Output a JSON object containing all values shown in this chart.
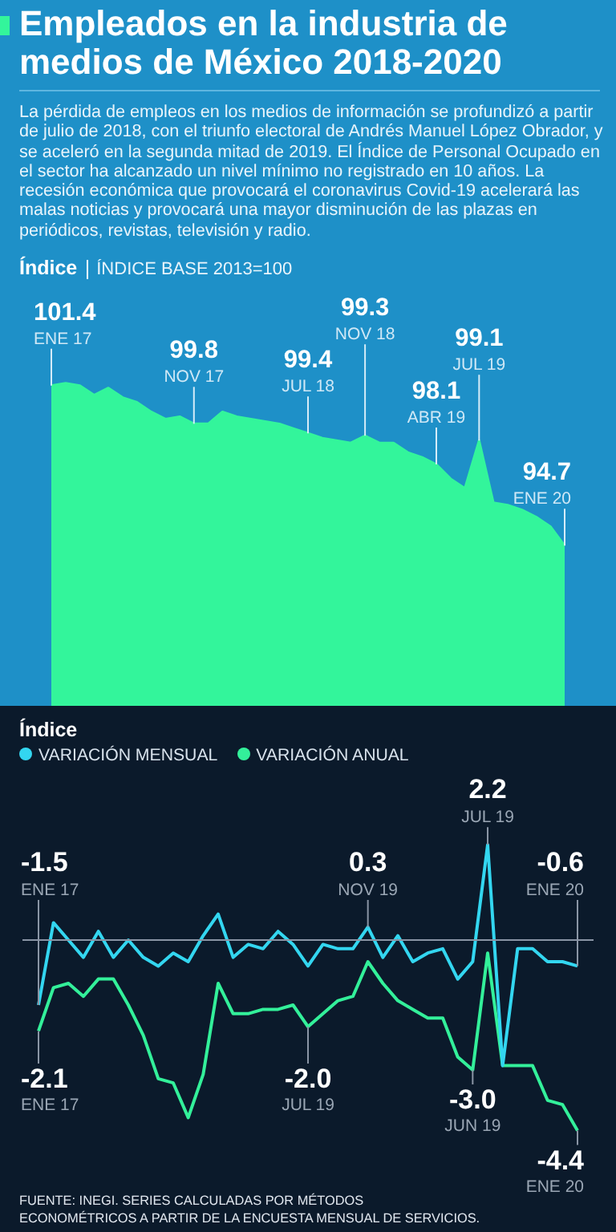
{
  "chart_data": [
    {
      "type": "area",
      "title": "Empleados en la industria de medios de México 2018-2020",
      "subtitle": "La pérdida de empleos en los medios de información se profundizó a partir de julio de 2018, con el triunfo electoral de Andrés Manuel López Obrador, y se aceleró en la segunda mitad de 2019. El Índice de Personal Ocupado en el sector ha alcanzado un nivel mínimo no registrado en 10 años. La recesión económica que provocará el coronavirus Covid-19 acelerará las malas noticias y provocará una mayor disminución de las plazas en periódicos, revistas, televisión y radio.",
      "ylabel": "Índice",
      "categories": [
        null,
        null,
        null,
        null,
        null,
        null,
        null,
        null,
        null,
        null,
        null,
        null,
        null,
        null,
        null,
        null,
        null,
        null,
        null,
        null,
        null,
        null,
        null,
        null,
        null,
        null,
        null,
        null,
        null,
        null,
        null,
        null,
        null,
        null,
        null,
        null,
        null
      ],
      "values": [
        101.4,
        101.5,
        101.4,
        101.0,
        101.3,
        100.9,
        100.7,
        100.3,
        100.0,
        100.1,
        99.8,
        99.8,
        100.3,
        100.1,
        100.0,
        99.9,
        99.8,
        99.6,
        99.4,
        99.2,
        99.1,
        99.0,
        99.3,
        99.0,
        99.0,
        98.6,
        98.4,
        98.1,
        97.5,
        97.1,
        99.1,
        96.5,
        96.4,
        96.2,
        95.9,
        95.5,
        94.7
      ],
      "value_labels": [
        "101.4",
        null,
        null,
        null,
        null,
        null,
        null,
        null,
        null,
        null,
        "99.8",
        null,
        null,
        null,
        null,
        null,
        null,
        null,
        "99.4",
        null,
        null,
        null,
        "99.3",
        null,
        null,
        null,
        null,
        "98.1",
        null,
        null,
        "99.1",
        null,
        null,
        null,
        null,
        null,
        "94.7"
      ],
      "color": "#33f59b",
      "tick_labels": false,
      "grid": false,
      "marker": "none",
      "annotations": [
        "ENE 17",
        "NOV 17",
        "JUL 18",
        "NOV 18",
        "ABR 19",
        "JUL 19",
        "ENE 20",
        "ÍNDICE BASE 2013=100"
      ]
    },
    {
      "type": "line",
      "ylabel": "Índice",
      "categories": [
        null,
        null,
        null,
        null,
        null,
        null,
        null,
        null,
        null,
        null,
        null,
        null,
        null,
        null,
        null,
        null,
        null,
        null,
        null,
        null,
        null,
        null,
        null,
        null,
        null,
        null,
        null,
        null,
        null,
        null,
        null,
        null,
        null,
        null,
        null,
        null,
        null
      ],
      "series": [
        {
          "name": "VARIACIÓN MENSUAL",
          "color": "#33d6f0",
          "values": [
            -1.5,
            0.4,
            0.0,
            -0.4,
            0.2,
            -0.4,
            0.0,
            -0.4,
            -0.6,
            -0.3,
            -0.5,
            0.1,
            0.6,
            -0.4,
            -0.1,
            -0.2,
            0.2,
            -0.1,
            -0.6,
            -0.1,
            -0.2,
            -0.2,
            0.3,
            -0.4,
            0.1,
            -0.5,
            -0.3,
            -0.2,
            -0.9,
            -0.5,
            2.2,
            -2.9,
            -0.2,
            -0.2,
            -0.5,
            -0.5,
            -0.6
          ],
          "value_labels": [
            "-1.5",
            null,
            null,
            null,
            null,
            null,
            null,
            null,
            null,
            null,
            null,
            null,
            null,
            null,
            null,
            null,
            null,
            null,
            null,
            null,
            null,
            null,
            "0.3",
            null,
            null,
            null,
            null,
            null,
            null,
            null,
            "2.2",
            null,
            null,
            null,
            null,
            null,
            "-0.6"
          ]
        },
        {
          "name": "VARIACIÓN ANUAL",
          "color": "#33f09a",
          "values": [
            -2.1,
            -1.1,
            -1.0,
            -1.3,
            -0.9,
            -0.9,
            -1.5,
            -2.2,
            -3.2,
            -3.3,
            -4.1,
            -3.1,
            -1.0,
            -1.7,
            -1.7,
            -1.6,
            -1.6,
            -1.5,
            -2.0,
            -1.7,
            -1.4,
            -1.3,
            -0.5,
            -1.0,
            -1.4,
            -1.6,
            -1.8,
            -1.8,
            -2.7,
            -3.0,
            -0.3,
            -2.9,
            -2.9,
            -2.9,
            -3.7,
            -3.8,
            -4.4
          ],
          "value_labels": [
            "-2.1",
            null,
            null,
            null,
            null,
            null,
            null,
            null,
            null,
            null,
            null,
            null,
            null,
            null,
            null,
            null,
            null,
            null,
            "-2.0",
            null,
            null,
            null,
            null,
            null,
            null,
            null,
            null,
            null,
            null,
            "-3.0",
            null,
            null,
            null,
            null,
            null,
            null,
            "-4.4"
          ]
        }
      ],
      "tick_labels": false,
      "grid": false,
      "legend": "top left",
      "marker": "none",
      "line_style": "solid",
      "ref_lines": [
        {
          "axis": "y",
          "value": 0,
          "color": "#8a95a5"
        }
      ],
      "annotations": [
        "ENE 17",
        "NOV 19",
        "JUL 19",
        "ENE 20",
        "ENE 17",
        "JUL 19",
        "JUN 19",
        "ENE 20",
        "FUENTE: INEGI. SERIES CALCULADAS POR MÉTODOS ECONOMÉTRICOS A PARTIR DE LA ENCUESTA MENSUAL DE SERVICIOS."
      ]
    }
  ]
}
